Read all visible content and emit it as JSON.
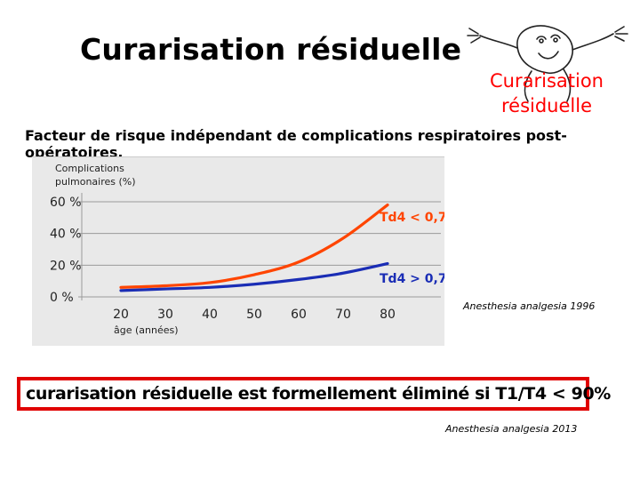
{
  "slide": {
    "title": "Curarisation résiduelle",
    "logo": {
      "line1": "Curarisation",
      "line2": "résiduelle"
    },
    "subtitle": "Facteur de risque indépendant de complications respiratoires post-opératoires.",
    "reference_1": "Anesthesia analgesia 1996",
    "conclusion": "curarisation résiduelle est formellement éliminé si T1/T4 < 90%",
    "reference_2": "Anesthesia analgesia 2013"
  },
  "colors": {
    "title": "#000000",
    "logo_text": "#ff0000",
    "frame": "#e00000",
    "series_high": "#ff4500",
    "series_low": "#1a2db5"
  },
  "icons": [
    "cartoon-character-logo"
  ],
  "chart_data": {
    "type": "line",
    "title": "",
    "ylabel_line1": "Complications",
    "ylabel_line2": "pulmonaires (%)",
    "xlabel": "âge (années)",
    "x": [
      20,
      30,
      40,
      50,
      60,
      70,
      80
    ],
    "xlim": [
      20,
      80
    ],
    "ylim": [
      0,
      60
    ],
    "yticks": [
      "0 %",
      "20 %",
      "40 %",
      "60 %"
    ],
    "xticks": [
      "20",
      "30",
      "40",
      "50",
      "60",
      "70",
      "80"
    ],
    "grid": "horizontal",
    "series": [
      {
        "name": "Td4 < 0,7",
        "color": "#ff4500",
        "values": [
          6,
          7,
          9,
          14,
          22,
          37,
          58
        ]
      },
      {
        "name": "Td4 > 0,7",
        "color": "#1a2db5",
        "values": [
          4,
          5,
          6,
          8,
          11,
          15,
          21
        ]
      }
    ]
  }
}
